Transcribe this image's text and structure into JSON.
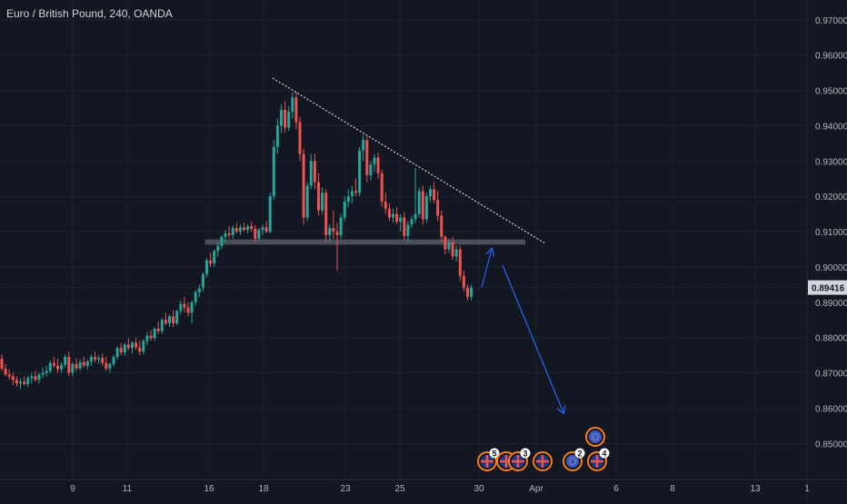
{
  "header": {
    "title": "Euro / British Pound, 240, OANDA"
  },
  "colors": {
    "background": "#131722",
    "up": "#26a69a",
    "down": "#ef5350",
    "grid": "#1e222d",
    "text": "#b2b5be",
    "trendline": "#d1d4dc",
    "support_zone": "#787b86",
    "projection": "#2962ff",
    "price_label_bg": "#d1d4dc",
    "event_ring": "#f57f17"
  },
  "chart_data": {
    "type": "candlestick",
    "title": "Euro / British Pound, 240, OANDA",
    "x_tick_labels": [
      "9",
      "11",
      "16",
      "18",
      "23",
      "25",
      "30",
      "Apr",
      "6",
      "8",
      "13",
      "1"
    ],
    "y_tick_labels": [
      "0.97000",
      "0.96000",
      "0.95000",
      "0.94000",
      "0.93000",
      "0.92000",
      "0.91000",
      "0.90000",
      "0.89000",
      "0.88000",
      "0.87000",
      "0.86000",
      "0.85000"
    ],
    "ylim": [
      0.8475,
      0.9715
    ],
    "last_price": "0.89416",
    "grid": true,
    "candles": [
      [
        0.874,
        0.8752,
        0.8705,
        0.8712
      ],
      [
        0.8712,
        0.8725,
        0.869,
        0.8695
      ],
      [
        0.8695,
        0.871,
        0.868,
        0.869
      ],
      [
        0.869,
        0.87,
        0.8665,
        0.868
      ],
      [
        0.868,
        0.869,
        0.866,
        0.867
      ],
      [
        0.867,
        0.8685,
        0.8655,
        0.8675
      ],
      [
        0.8675,
        0.869,
        0.8665,
        0.8668
      ],
      [
        0.8668,
        0.8692,
        0.866,
        0.8685
      ],
      [
        0.8685,
        0.87,
        0.867,
        0.869
      ],
      [
        0.869,
        0.8705,
        0.8675,
        0.868
      ],
      [
        0.868,
        0.87,
        0.867,
        0.8695
      ],
      [
        0.8695,
        0.8715,
        0.8685,
        0.87
      ],
      [
        0.87,
        0.872,
        0.869,
        0.8705
      ],
      [
        0.8705,
        0.8735,
        0.8698,
        0.8728
      ],
      [
        0.8728,
        0.8745,
        0.8715,
        0.872
      ],
      [
        0.872,
        0.874,
        0.87,
        0.871
      ],
      [
        0.871,
        0.873,
        0.87,
        0.8722
      ],
      [
        0.8722,
        0.8752,
        0.8715,
        0.8745
      ],
      [
        0.8745,
        0.876,
        0.869,
        0.87
      ],
      [
        0.87,
        0.873,
        0.869,
        0.8725
      ],
      [
        0.8725,
        0.874,
        0.8705,
        0.8712
      ],
      [
        0.8712,
        0.8738,
        0.8705,
        0.873
      ],
      [
        0.873,
        0.8745,
        0.8715,
        0.872
      ],
      [
        0.872,
        0.8738,
        0.871,
        0.8732
      ],
      [
        0.8732,
        0.8752,
        0.872,
        0.8745
      ],
      [
        0.8745,
        0.876,
        0.873,
        0.8738
      ],
      [
        0.8738,
        0.875,
        0.8725,
        0.8742
      ],
      [
        0.8742,
        0.8755,
        0.872,
        0.8728
      ],
      [
        0.8728,
        0.8745,
        0.8705,
        0.8712
      ],
      [
        0.8712,
        0.873,
        0.87,
        0.8725
      ],
      [
        0.8725,
        0.875,
        0.8718,
        0.8745
      ],
      [
        0.8745,
        0.8775,
        0.8738,
        0.877
      ],
      [
        0.877,
        0.8785,
        0.875,
        0.8758
      ],
      [
        0.8758,
        0.8785,
        0.8748,
        0.878
      ],
      [
        0.878,
        0.8798,
        0.8765,
        0.877
      ],
      [
        0.877,
        0.879,
        0.8755,
        0.8785
      ],
      [
        0.8785,
        0.88,
        0.8765,
        0.8772
      ],
      [
        0.8772,
        0.8792,
        0.875,
        0.876
      ],
      [
        0.876,
        0.8795,
        0.8752,
        0.879
      ],
      [
        0.879,
        0.8815,
        0.8778,
        0.8805
      ],
      [
        0.8805,
        0.882,
        0.879,
        0.8798
      ],
      [
        0.8798,
        0.883,
        0.879,
        0.8825
      ],
      [
        0.8825,
        0.8845,
        0.881,
        0.8818
      ],
      [
        0.8818,
        0.8855,
        0.881,
        0.885
      ],
      [
        0.885,
        0.887,
        0.8835,
        0.884
      ],
      [
        0.884,
        0.8865,
        0.883,
        0.886
      ],
      [
        0.886,
        0.8878,
        0.883,
        0.884
      ],
      [
        0.884,
        0.888,
        0.8835,
        0.8875
      ],
      [
        0.8875,
        0.8905,
        0.8865,
        0.8895
      ],
      [
        0.8895,
        0.8915,
        0.887,
        0.8885
      ],
      [
        0.8885,
        0.89,
        0.886,
        0.887
      ],
      [
        0.887,
        0.8905,
        0.884,
        0.89
      ],
      [
        0.89,
        0.8935,
        0.889,
        0.8928
      ],
      [
        0.8928,
        0.895,
        0.8915,
        0.894
      ],
      [
        0.894,
        0.8985,
        0.893,
        0.898
      ],
      [
        0.898,
        0.9025,
        0.897,
        0.9018
      ],
      [
        0.9018,
        0.904,
        0.9,
        0.901
      ],
      [
        0.901,
        0.905,
        0.9,
        0.9045
      ],
      [
        0.9045,
        0.907,
        0.903,
        0.906
      ],
      [
        0.906,
        0.909,
        0.905,
        0.9085
      ],
      [
        0.9085,
        0.9105,
        0.907,
        0.9095
      ],
      [
        0.9095,
        0.9115,
        0.908,
        0.909
      ],
      [
        0.909,
        0.9118,
        0.908,
        0.911
      ],
      [
        0.911,
        0.9125,
        0.9095,
        0.91
      ],
      [
        0.91,
        0.912,
        0.909,
        0.9112
      ],
      [
        0.9112,
        0.9125,
        0.91,
        0.9105
      ],
      [
        0.9105,
        0.912,
        0.9095,
        0.9115
      ],
      [
        0.9115,
        0.9128,
        0.91,
        0.9108
      ],
      [
        0.9108,
        0.9118,
        0.907,
        0.908
      ],
      [
        0.908,
        0.911,
        0.9075,
        0.9105
      ],
      [
        0.9105,
        0.912,
        0.909,
        0.9112
      ],
      [
        0.9112,
        0.913,
        0.9095,
        0.91
      ],
      [
        0.91,
        0.921,
        0.9095,
        0.92
      ],
      [
        0.92,
        0.936,
        0.919,
        0.934
      ],
      [
        0.934,
        0.942,
        0.932,
        0.94
      ],
      [
        0.94,
        0.946,
        0.938,
        0.9445
      ],
      [
        0.9445,
        0.947,
        0.938,
        0.9395
      ],
      [
        0.9395,
        0.9455,
        0.9385,
        0.944
      ],
      [
        0.944,
        0.9495,
        0.942,
        0.948
      ],
      [
        0.948,
        0.9495,
        0.939,
        0.941
      ],
      [
        0.941,
        0.9425,
        0.93,
        0.932
      ],
      [
        0.932,
        0.9335,
        0.912,
        0.914
      ],
      [
        0.914,
        0.924,
        0.913,
        0.923
      ],
      [
        0.923,
        0.932,
        0.922,
        0.93
      ],
      [
        0.93,
        0.932,
        0.922,
        0.924
      ],
      [
        0.924,
        0.9265,
        0.9145,
        0.916
      ],
      [
        0.916,
        0.9225,
        0.915,
        0.921
      ],
      [
        0.921,
        0.922,
        0.907,
        0.909
      ],
      [
        0.909,
        0.912,
        0.907,
        0.911
      ],
      [
        0.911,
        0.916,
        0.908,
        0.91
      ],
      [
        0.91,
        0.9125,
        0.899,
        0.909
      ],
      [
        0.909,
        0.915,
        0.908,
        0.914
      ],
      [
        0.914,
        0.92,
        0.913,
        0.9185
      ],
      [
        0.9185,
        0.922,
        0.917,
        0.92
      ],
      [
        0.92,
        0.923,
        0.918,
        0.9215
      ],
      [
        0.9215,
        0.925,
        0.92,
        0.921
      ],
      [
        0.921,
        0.934,
        0.92,
        0.933
      ],
      [
        0.933,
        0.9375,
        0.93,
        0.936
      ],
      [
        0.936,
        0.937,
        0.924,
        0.926
      ],
      [
        0.926,
        0.93,
        0.9245,
        0.929
      ],
      [
        0.929,
        0.932,
        0.927,
        0.931
      ],
      [
        0.931,
        0.9325,
        0.925,
        0.9265
      ],
      [
        0.9265,
        0.9275,
        0.917,
        0.9185
      ],
      [
        0.9185,
        0.921,
        0.915,
        0.9165
      ],
      [
        0.9165,
        0.918,
        0.913,
        0.914
      ],
      [
        0.914,
        0.9165,
        0.9125,
        0.915
      ],
      [
        0.915,
        0.917,
        0.912,
        0.9128
      ],
      [
        0.9128,
        0.915,
        0.91,
        0.914
      ],
      [
        0.914,
        0.9155,
        0.9075,
        0.9088
      ],
      [
        0.9088,
        0.913,
        0.907,
        0.912
      ],
      [
        0.912,
        0.9145,
        0.911,
        0.9135
      ],
      [
        0.9135,
        0.928,
        0.9125,
        0.915
      ],
      [
        0.915,
        0.9225,
        0.914,
        0.9215
      ],
      [
        0.9215,
        0.923,
        0.912,
        0.9135
      ],
      [
        0.9135,
        0.921,
        0.9125,
        0.92
      ],
      [
        0.92,
        0.923,
        0.9185,
        0.922
      ],
      [
        0.922,
        0.924,
        0.918,
        0.919
      ],
      [
        0.919,
        0.9215,
        0.913,
        0.9145
      ],
      [
        0.9145,
        0.916,
        0.907,
        0.9085
      ],
      [
        0.9085,
        0.909,
        0.9035,
        0.905
      ],
      [
        0.905,
        0.908,
        0.904,
        0.907
      ],
      [
        0.907,
        0.9085,
        0.902,
        0.903
      ],
      [
        0.903,
        0.906,
        0.9015,
        0.905
      ],
      [
        0.905,
        0.906,
        0.896,
        0.8975
      ],
      [
        0.8975,
        0.899,
        0.893,
        0.894
      ],
      [
        0.894,
        0.895,
        0.8905,
        0.8915
      ],
      [
        0.8915,
        0.895,
        0.8905,
        0.8942
      ]
    ],
    "annotations": {
      "trendline": {
        "from": [
          0,
          0.9535
        ],
        "to": [
          0,
          0.9068
        ],
        "from_index": 70,
        "to_index": 140
      },
      "support_zone": {
        "low": 0.9063,
        "high": 0.9078,
        "from_index": 55,
        "to_index": 140
      },
      "projection_path": [
        [
          128,
          0.8942
        ],
        [
          131,
          0.905
        ],
        [
          148,
          0.8587
        ]
      ]
    },
    "events": [
      {
        "glyph": "uk-flag",
        "badge": "5"
      },
      {
        "glyph": "uk-flag",
        "badge": ""
      },
      {
        "glyph": "uk-flag",
        "badge": "3"
      },
      {
        "glyph": "uk-flag",
        "badge": ""
      },
      {
        "glyph": "eu-flag",
        "badge": "2"
      },
      {
        "glyph": "eu-flag",
        "badge": ""
      },
      {
        "glyph": "uk-flag",
        "badge": "4"
      }
    ]
  }
}
